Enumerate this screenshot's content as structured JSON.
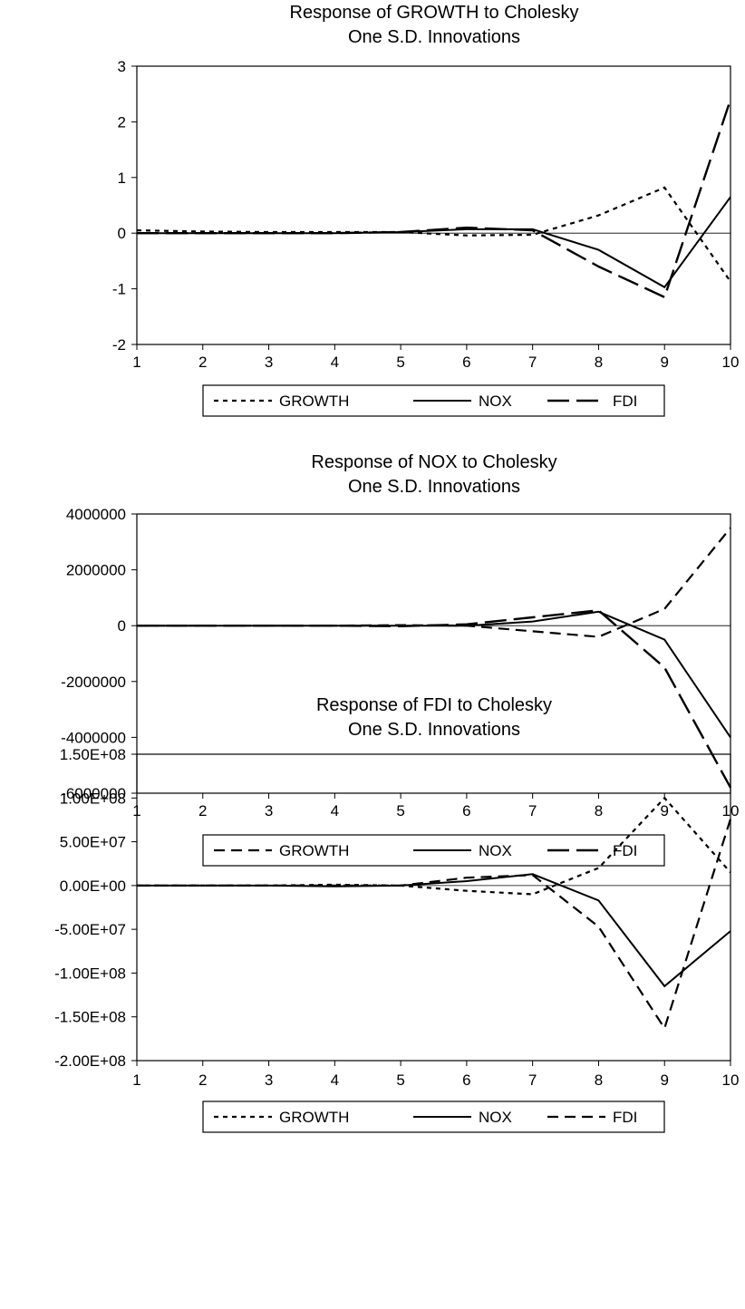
{
  "chart_data": [
    {
      "type": "line",
      "title": "Response of GROWTH to Cholesky",
      "subtitle": "One S.D. Innovations",
      "x": [
        1,
        2,
        3,
        4,
        5,
        6,
        7,
        8,
        9,
        10
      ],
      "ylim": [
        -2,
        3
      ],
      "yticks": [
        3,
        2,
        1,
        0,
        -1,
        -2
      ],
      "ytick_labels": [
        "3",
        "2",
        "1",
        "0",
        "-1",
        "-2"
      ],
      "series": [
        {
          "name": "GROWTH",
          "style": "dotted",
          "values": [
            0.05,
            0.03,
            0.02,
            0.02,
            0.02,
            -0.04,
            -0.03,
            0.32,
            0.82,
            -0.87
          ]
        },
        {
          "name": "NOX",
          "style": "solid",
          "values": [
            0.0,
            0.0,
            0.0,
            0.0,
            0.02,
            0.07,
            0.07,
            -0.3,
            -0.97,
            0.65
          ]
        },
        {
          "name": "FDI",
          "style": "longdash",
          "values": [
            0.0,
            0.0,
            0.0,
            0.0,
            0.02,
            0.1,
            0.05,
            -0.6,
            -1.15,
            2.4
          ]
        }
      ],
      "legend_position": "bottom"
    },
    {
      "type": "line",
      "title": "Response of NOX to Cholesky",
      "subtitle": "One S.D. Innovations",
      "x": [
        1,
        2,
        3,
        4,
        5,
        6,
        7,
        8,
        9,
        10
      ],
      "ylim": [
        -6000000,
        4000000
      ],
      "yticks": [
        4000000,
        2000000,
        0,
        -2000000,
        -4000000,
        -6000000
      ],
      "ytick_labels": [
        "4000000",
        "2000000",
        "0",
        "-2000000",
        "-4000000",
        "-6000000"
      ],
      "series": [
        {
          "name": "GROWTH",
          "style": "dashed",
          "values": [
            0,
            0,
            0,
            0,
            20000,
            0,
            -200000,
            -400000,
            600000,
            3500000
          ]
        },
        {
          "name": "NOX",
          "style": "solid",
          "values": [
            0,
            0,
            0,
            0,
            0,
            0,
            150000,
            500000,
            -500000,
            -4000000
          ]
        },
        {
          "name": "FDI",
          "style": "longdash",
          "values": [
            0,
            0,
            0,
            0,
            -20000,
            50000,
            300000,
            550000,
            -1500000,
            -5800000
          ]
        }
      ],
      "legend_position": "bottom"
    },
    {
      "type": "line",
      "title": "Response of FDI to Cholesky",
      "subtitle": "One S.D. Innovations",
      "x": [
        1,
        2,
        3,
        4,
        5,
        6,
        7,
        8,
        9,
        10
      ],
      "ylim": [
        -200000000,
        150000000
      ],
      "yticks": [
        150000000,
        100000000,
        50000000,
        0,
        -50000000,
        -100000000,
        -150000000,
        -200000000
      ],
      "ytick_labels": [
        "1.50E+08",
        "1.00E+08",
        "5.00E+07",
        "0.00E+00",
        "-5.00E+07",
        "-1.00E+08",
        "-1.50E+08",
        "-2.00E+08"
      ],
      "series": [
        {
          "name": "GROWTH",
          "style": "dotted",
          "values": [
            0,
            0,
            0,
            1000000,
            0,
            -6000000,
            -10000000,
            20000000,
            100000000,
            15000000
          ]
        },
        {
          "name": "NOX",
          "style": "solid",
          "values": [
            0,
            0,
            0,
            -1000000,
            0,
            5000000,
            13000000,
            -17000000,
            -115000000,
            -52000000
          ]
        },
        {
          "name": "FDI",
          "style": "dashed",
          "values": [
            0,
            0,
            0,
            0,
            0,
            9000000,
            12000000,
            -47000000,
            -163000000,
            76000000
          ]
        }
      ],
      "legend_position": "bottom"
    }
  ]
}
